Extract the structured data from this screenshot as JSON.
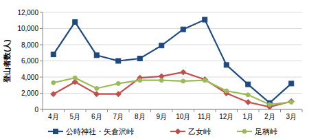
{
  "chart_data": {
    "type": "line",
    "y_label": "登山者数(人)",
    "categories": [
      "4月",
      "5月",
      "6月",
      "7月",
      "8月",
      "9月",
      "10月",
      "11月",
      "12月",
      "1月",
      "2月",
      "3月"
    ],
    "series": [
      {
        "name": "公時神社・矢倉沢峠",
        "color": "#1f497d",
        "marker": "square",
        "values": [
          6800,
          10800,
          6700,
          6000,
          6300,
          7900,
          9900,
          11100,
          5500,
          3100,
          800,
          3200
        ]
      },
      {
        "name": "乙女峠",
        "color": "#c0504d",
        "marker": "diamond",
        "values": [
          1900,
          3400,
          1900,
          1900,
          3900,
          4100,
          4600,
          3700,
          2000,
          900,
          300,
          1000
        ]
      },
      {
        "name": "足柄峠",
        "color": "#9bbb59",
        "marker": "circle",
        "values": [
          3300,
          3900,
          2600,
          3200,
          3600,
          3600,
          3500,
          3600,
          2300,
          1800,
          600,
          900
        ]
      }
    ],
    "ylim": [
      0,
      12000
    ],
    "yticks": [
      0,
      {
        "value": 2000,
        "label": "2,000"
      },
      {
        "value": 4000,
        "label": "4,000"
      },
      {
        "value": 6000,
        "label": "6,000"
      },
      {
        "value": 8000,
        "label": "8,000"
      },
      {
        "value": 10000,
        "label": "10,000"
      },
      {
        "value": 12000,
        "label": "12,000"
      }
    ],
    "grid": true,
    "legend": "bottom"
  }
}
